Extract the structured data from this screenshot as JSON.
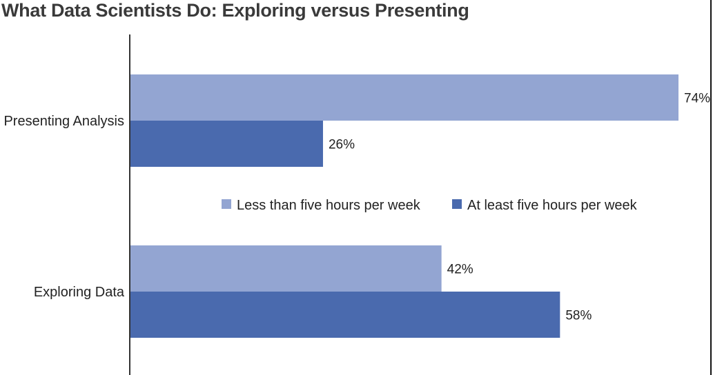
{
  "chart_data": {
    "type": "bar",
    "orientation": "horizontal",
    "title": "What Data Scientists Do: Exploring versus Presenting",
    "categories": [
      "Presenting Analysis",
      "Exploring Data"
    ],
    "series": [
      {
        "name": "Less than five hours per week",
        "values": [
          74,
          42
        ],
        "labels": [
          "74%",
          "42%"
        ],
        "color": "#93a5d2"
      },
      {
        "name": "At least five hours per week",
        "values": [
          26,
          58
        ],
        "labels": [
          "26%",
          "58%"
        ],
        "color": "#4a6aae"
      }
    ],
    "xlim": [
      0,
      74
    ],
    "legend_position": "center",
    "grid": false
  }
}
